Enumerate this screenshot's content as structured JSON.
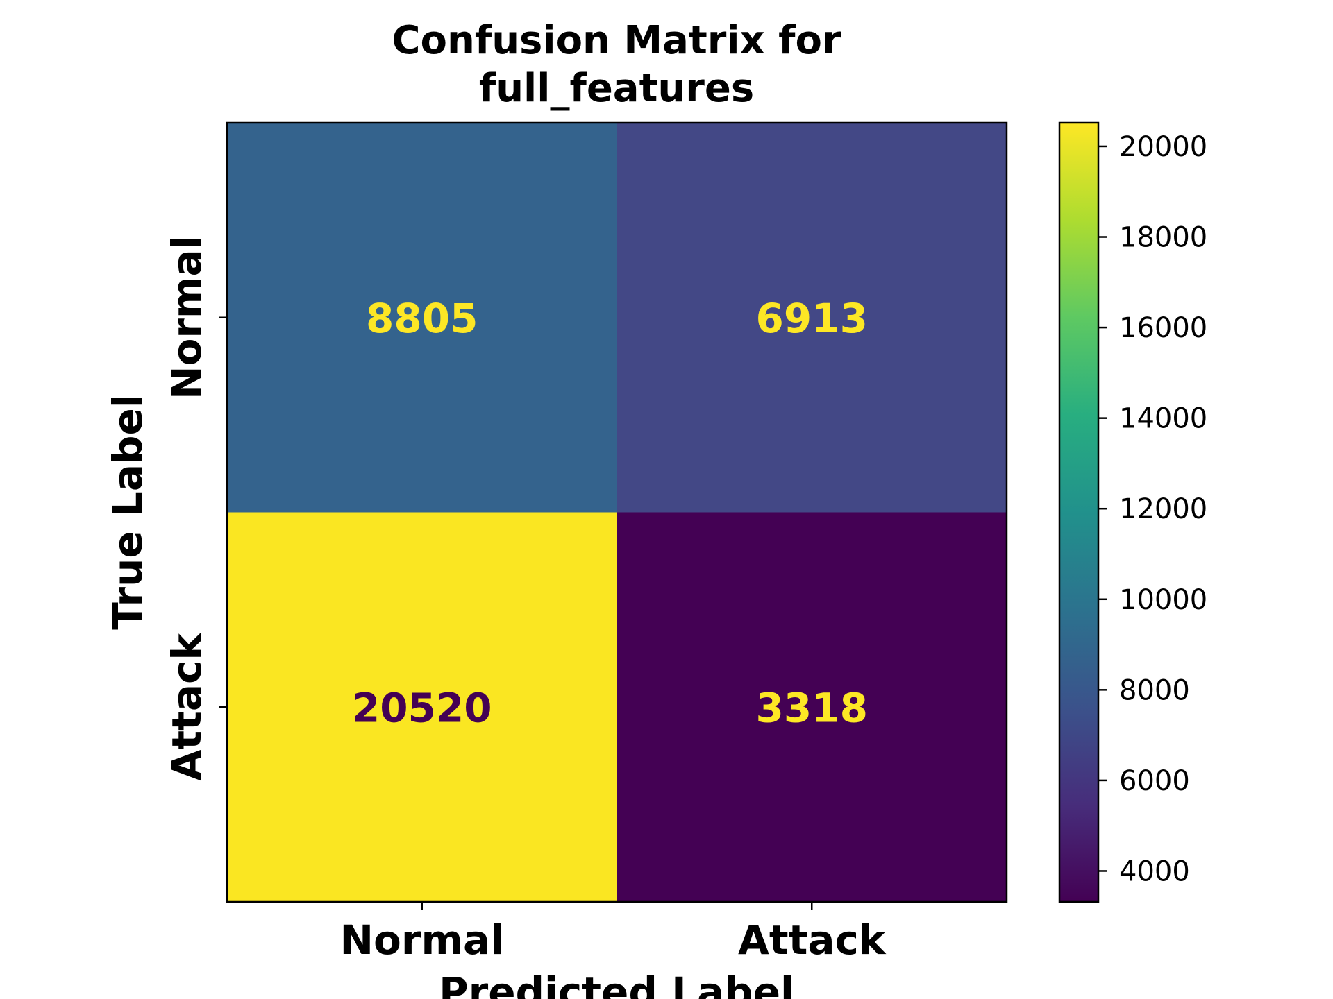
{
  "chart_data": {
    "type": "heatmap",
    "title": [
      "Confusion Matrix for",
      "full_features"
    ],
    "xlabel": "Predicted Label",
    "ylabel": "True Label",
    "x_categories": [
      "Normal",
      "Attack"
    ],
    "y_categories": [
      "Normal",
      "Attack"
    ],
    "values": [
      [
        8805,
        6913
      ],
      [
        20520,
        3318
      ]
    ],
    "colormap": "viridis",
    "colorbar": {
      "range": [
        3318,
        20520
      ],
      "ticks": [
        4000,
        6000,
        8000,
        10000,
        12000,
        14000,
        16000,
        18000,
        20000
      ],
      "tick_labels": [
        "4000",
        "6000",
        "8000",
        "10000",
        "12000",
        "14000",
        "16000",
        "18000",
        "20000"
      ]
    },
    "cell_colors": [
      [
        "#34638d",
        "#434886"
      ],
      [
        "#fae622",
        "#440154"
      ]
    ],
    "annotation_colors": [
      [
        "#fde725",
        "#fde725"
      ],
      [
        "#440154",
        "#fde725"
      ]
    ]
  }
}
